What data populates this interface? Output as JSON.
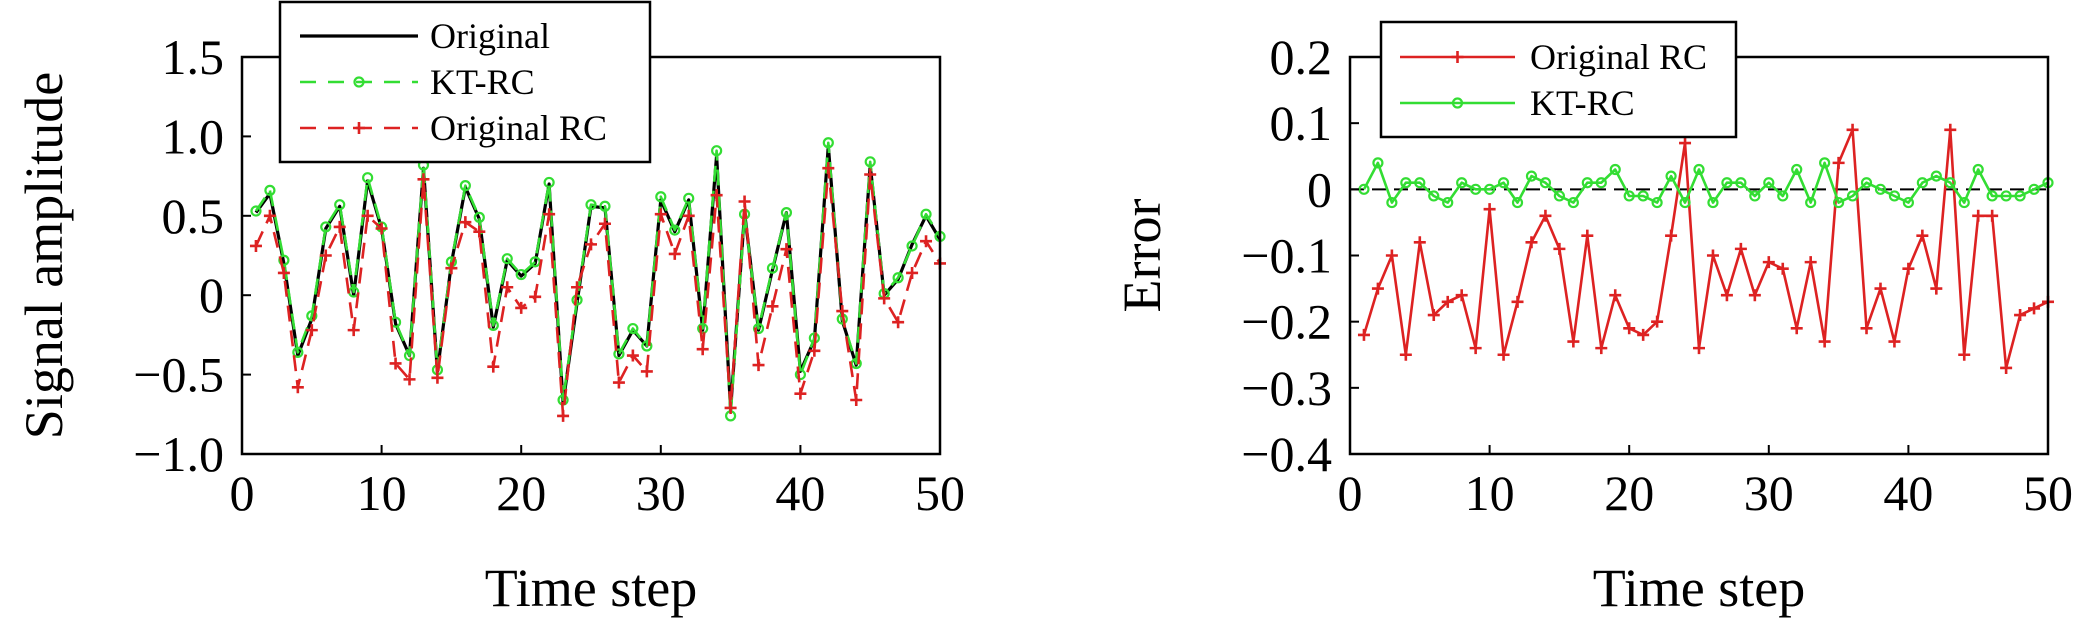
{
  "chart_data": [
    {
      "type": "line",
      "xlabel": "Time step",
      "ylabel": "Signal amplitude",
      "xlim": [
        0,
        50
      ],
      "ylim": [
        -1.0,
        1.5
      ],
      "xticks": [
        0,
        10,
        20,
        30,
        40,
        50
      ],
      "yticks": [
        1.5,
        1.0,
        0.5,
        0,
        -0.5,
        -1.0
      ],
      "xtick_labels": [
        "0",
        "10",
        "20",
        "30",
        "40",
        "50"
      ],
      "ytick_labels": [
        "1.5",
        "1.0",
        "0.5",
        "0",
        "−0.5",
        "−1.0"
      ],
      "legend_position": "top-left",
      "x": [
        1,
        2,
        3,
        4,
        5,
        6,
        7,
        8,
        9,
        10,
        11,
        12,
        13,
        14,
        15,
        16,
        17,
        18,
        19,
        20,
        21,
        22,
        23,
        24,
        25,
        26,
        27,
        28,
        29,
        30,
        31,
        32,
        33,
        34,
        35,
        36,
        37,
        38,
        39,
        40,
        41,
        42,
        43,
        44,
        45,
        46,
        47,
        48,
        49,
        50
      ],
      "series": [
        {
          "name": "Original",
          "color": "#000000",
          "style": "solid",
          "marker": "none",
          "values": [
            0.52,
            0.64,
            0.2,
            -0.38,
            -0.15,
            0.42,
            0.56,
            0.0,
            0.72,
            0.42,
            -0.18,
            -0.38,
            0.8,
            -0.48,
            0.2,
            0.68,
            0.48,
            -0.2,
            0.22,
            0.12,
            0.2,
            0.7,
            -0.68,
            -0.05,
            0.56,
            0.55,
            -0.38,
            -0.22,
            -0.32,
            0.6,
            0.4,
            0.6,
            -0.22,
            0.88,
            -0.72,
            0.52,
            -0.22,
            0.16,
            0.52,
            -0.48,
            -0.28,
            0.94,
            -0.16,
            -0.44,
            0.82,
            0.0,
            0.1,
            0.32,
            0.5,
            0.35
          ]
        },
        {
          "name": "KT-RC",
          "color": "#33dd33",
          "style": "dashed",
          "marker": "circle",
          "values": [
            0.53,
            0.66,
            0.22,
            -0.36,
            -0.13,
            0.43,
            0.57,
            0.02,
            0.74,
            0.43,
            -0.17,
            -0.38,
            0.82,
            -0.47,
            0.21,
            0.69,
            0.49,
            -0.19,
            0.23,
            0.13,
            0.21,
            0.71,
            -0.66,
            -0.03,
            0.57,
            0.56,
            -0.37,
            -0.21,
            -0.32,
            0.62,
            0.41,
            0.61,
            -0.21,
            0.91,
            -0.76,
            0.51,
            -0.21,
            0.17,
            0.52,
            -0.5,
            -0.27,
            0.96,
            -0.15,
            -0.43,
            0.84,
            0.01,
            0.11,
            0.31,
            0.51,
            0.37
          ]
        },
        {
          "name": "Original RC",
          "color": "#dd2222",
          "style": "dashed",
          "marker": "plus",
          "values": [
            0.31,
            0.5,
            0.14,
            -0.58,
            -0.22,
            0.25,
            0.43,
            -0.22,
            0.5,
            0.42,
            -0.43,
            -0.53,
            0.73,
            -0.52,
            0.17,
            0.46,
            0.4,
            -0.45,
            0.05,
            -0.08,
            -0.01,
            0.51,
            -0.76,
            0.05,
            0.32,
            0.45,
            -0.55,
            -0.38,
            -0.48,
            0.51,
            0.26,
            0.5,
            -0.34,
            0.63,
            -0.71,
            0.59,
            -0.44,
            -0.07,
            0.29,
            -0.62,
            -0.35,
            0.8,
            -0.1,
            -0.66,
            0.76,
            -0.02,
            -0.17,
            0.14,
            0.34,
            0.2
          ]
        }
      ]
    },
    {
      "type": "line",
      "xlabel": "Time step",
      "ylabel": "Error",
      "xlim": [
        0,
        50
      ],
      "ylim": [
        -0.4,
        0.2
      ],
      "xticks": [
        0,
        10,
        20,
        30,
        40,
        50
      ],
      "yticks": [
        0.2,
        0.1,
        0,
        -0.1,
        -0.2,
        -0.3,
        -0.4
      ],
      "xtick_labels": [
        "0",
        "10",
        "20",
        "30",
        "40",
        "50"
      ],
      "ytick_labels": [
        "0.2",
        "0.1",
        "0",
        "−0.1",
        "−0.2",
        "−0.3",
        "−0.4"
      ],
      "legend_position": "top-left",
      "reference_line": {
        "y": 0,
        "color": "#000000",
        "style": "dashed"
      },
      "x": [
        1,
        2,
        3,
        4,
        5,
        6,
        7,
        8,
        9,
        10,
        11,
        12,
        13,
        14,
        15,
        16,
        17,
        18,
        19,
        20,
        21,
        22,
        23,
        24,
        25,
        26,
        27,
        28,
        29,
        30,
        31,
        32,
        33,
        34,
        35,
        36,
        37,
        38,
        39,
        40,
        41,
        42,
        43,
        44,
        45,
        46,
        47,
        48,
        49,
        50
      ],
      "series": [
        {
          "name": "Original RC",
          "color": "#dd2222",
          "style": "solid",
          "marker": "plus",
          "values": [
            -0.22,
            -0.15,
            -0.1,
            -0.25,
            -0.08,
            -0.19,
            -0.17,
            -0.16,
            -0.24,
            -0.03,
            -0.25,
            -0.17,
            -0.08,
            -0.04,
            -0.09,
            -0.23,
            -0.07,
            -0.24,
            -0.16,
            -0.21,
            -0.22,
            -0.2,
            -0.07,
            0.07,
            -0.24,
            -0.1,
            -0.16,
            -0.09,
            -0.16,
            -0.11,
            -0.12,
            -0.21,
            -0.11,
            -0.23,
            0.04,
            0.09,
            -0.21,
            -0.15,
            -0.23,
            -0.12,
            -0.07,
            -0.15,
            0.09,
            -0.25,
            -0.04,
            -0.04,
            -0.27,
            -0.19,
            -0.18,
            -0.17
          ]
        },
        {
          "name": "KT-RC",
          "color": "#33dd33",
          "style": "solid",
          "marker": "circle",
          "values": [
            0.0,
            0.04,
            -0.02,
            0.01,
            0.01,
            -0.01,
            -0.02,
            0.01,
            0.0,
            0.0,
            0.01,
            -0.02,
            0.02,
            0.01,
            -0.01,
            -0.02,
            0.01,
            0.01,
            0.03,
            -0.01,
            -0.01,
            -0.02,
            0.02,
            -0.02,
            0.03,
            -0.02,
            0.01,
            0.01,
            -0.01,
            0.01,
            -0.01,
            0.03,
            -0.02,
            0.04,
            -0.02,
            -0.01,
            0.01,
            0.0,
            -0.01,
            -0.02,
            0.01,
            0.02,
            0.01,
            -0.02,
            0.03,
            -0.01,
            -0.01,
            -0.01,
            0.0,
            0.01
          ]
        }
      ]
    }
  ]
}
